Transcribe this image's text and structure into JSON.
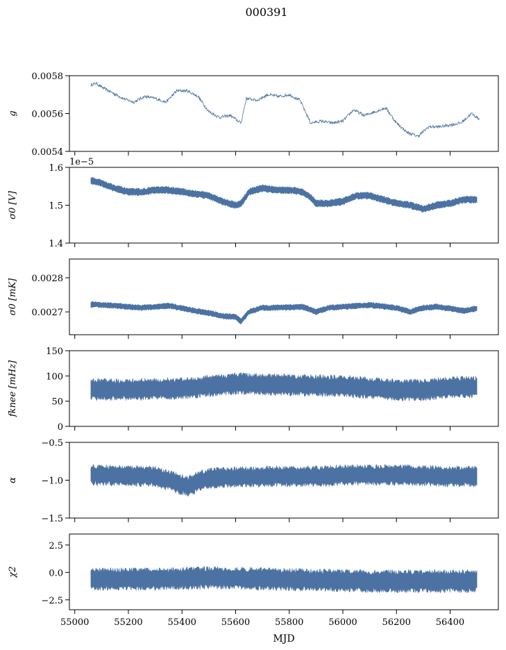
{
  "figure": {
    "title": "000391",
    "xlabel": "MJD"
  },
  "colors": {
    "series": "#4c72a3",
    "axes": "#000000",
    "background": "#ffffff"
  },
  "chart_data": [
    {
      "id": "gain",
      "type": "line",
      "ylabel": "g",
      "xlim": [
        54980,
        56580
      ],
      "ylim": [
        0.0054,
        0.0058
      ],
      "yticks": [
        0.0054,
        0.0056,
        0.0058
      ],
      "yticklabels": [
        "0.0054",
        "0.0056",
        "0.0058"
      ],
      "series": [
        {
          "name": "g",
          "fill": false,
          "noise": 8e-06,
          "x": [
            55060,
            55080,
            55100,
            55140,
            55180,
            55220,
            55260,
            55300,
            55340,
            55380,
            55420,
            55460,
            55500,
            55540,
            55580,
            55620,
            55640,
            55680,
            55720,
            55760,
            55800,
            55840,
            55880,
            55920,
            55960,
            56000,
            56040,
            56080,
            56120,
            56160,
            56200,
            56240,
            56280,
            56320,
            56360,
            56400,
            56440,
            56480,
            56510
          ],
          "y": [
            0.00575,
            0.00576,
            0.00574,
            0.00571,
            0.00568,
            0.00566,
            0.00569,
            0.00568,
            0.00566,
            0.00572,
            0.00572,
            0.00569,
            0.00561,
            0.00558,
            0.00559,
            0.00555,
            0.00568,
            0.00567,
            0.0057,
            0.00569,
            0.0057,
            0.00567,
            0.00555,
            0.00556,
            0.00555,
            0.00556,
            0.00562,
            0.00559,
            0.00561,
            0.00563,
            0.00555,
            0.0055,
            0.00548,
            0.00553,
            0.00553,
            0.00554,
            0.00555,
            0.0056,
            0.00557
          ]
        }
      ]
    },
    {
      "id": "sigma0_v",
      "type": "line",
      "ylabel": "σ0 [V]",
      "offset_text": "1e−5",
      "xlim": [
        54980,
        56580
      ],
      "ylim": [
        1.4,
        1.6
      ],
      "yticks": [
        1.4,
        1.5,
        1.6
      ],
      "yticklabels": [
        "1.4",
        "1.5",
        "1.6"
      ],
      "series": [
        {
          "name": "σ0 [V]",
          "fill": true,
          "noise": 0.01,
          "x": [
            55060,
            55100,
            55150,
            55200,
            55250,
            55300,
            55350,
            55400,
            55450,
            55500,
            55550,
            55600,
            55620,
            55650,
            55700,
            55750,
            55800,
            55850,
            55880,
            55900,
            55950,
            56000,
            56050,
            56100,
            56150,
            56200,
            56250,
            56300,
            56350,
            56400,
            56450,
            56500
          ],
          "y": [
            1.565,
            1.558,
            1.545,
            1.535,
            1.535,
            1.54,
            1.54,
            1.535,
            1.53,
            1.525,
            1.51,
            1.5,
            1.505,
            1.535,
            1.545,
            1.54,
            1.54,
            1.535,
            1.52,
            1.505,
            1.505,
            1.51,
            1.525,
            1.525,
            1.515,
            1.505,
            1.5,
            1.49,
            1.5,
            1.505,
            1.515,
            1.515
          ]
        }
      ]
    },
    {
      "id": "sigma0_mk",
      "type": "line",
      "ylabel": "σ0 [mK]",
      "xlim": [
        54980,
        56580
      ],
      "ylim": [
        0.002633,
        0.002855
      ],
      "yticks": [
        0.0027,
        0.0028
      ],
      "yticklabels": [
        "0.0027",
        "0.0028"
      ],
      "series": [
        {
          "name": "σ0 [mK]",
          "fill": true,
          "noise": 9e-06,
          "x": [
            55060,
            55150,
            55250,
            55350,
            55450,
            55500,
            55550,
            55600,
            55620,
            55650,
            55700,
            55800,
            55850,
            55900,
            55950,
            56000,
            56100,
            56200,
            56250,
            56300,
            56350,
            56400,
            56450,
            56500
          ],
          "y": [
            0.002722,
            0.002718,
            0.002712,
            0.002718,
            0.002703,
            0.002697,
            0.002688,
            0.002685,
            0.002672,
            0.0027,
            0.002712,
            0.002713,
            0.002715,
            0.0027,
            0.002712,
            0.002715,
            0.00272,
            0.002712,
            0.0027,
            0.002712,
            0.002715,
            0.00271,
            0.002703,
            0.00271
          ]
        }
      ]
    },
    {
      "id": "fknee",
      "type": "line",
      "ylabel": "fknee [mHz]",
      "xlim": [
        54980,
        56580
      ],
      "ylim": [
        0,
        150
      ],
      "yticks": [
        0,
        50,
        100,
        150
      ],
      "yticklabels": [
        "0",
        "50",
        "100",
        "150"
      ],
      "series": [
        {
          "name": "fknee",
          "fill": true,
          "noise": 22,
          "x": [
            55060,
            55200,
            55400,
            55600,
            55800,
            56000,
            56200,
            56300,
            56400,
            56500
          ],
          "y": [
            73,
            73,
            75,
            85,
            82,
            80,
            72,
            72,
            78,
            78
          ]
        }
      ]
    },
    {
      "id": "alpha",
      "type": "line",
      "ylabel": "α",
      "xlim": [
        54980,
        56580
      ],
      "ylim": [
        -1.5,
        -0.5
      ],
      "yticks": [
        -1.5,
        -1.0,
        -0.5
      ],
      "yticklabels": [
        "−1.5",
        "−1.0",
        "−0.5"
      ],
      "series": [
        {
          "name": "α",
          "fill": true,
          "noise": 0.14,
          "x": [
            55060,
            55300,
            55420,
            55500,
            55700,
            55900,
            56000,
            56200,
            56400,
            56500
          ],
          "y": [
            -0.93,
            -0.95,
            -1.08,
            -0.97,
            -0.95,
            -0.95,
            -0.93,
            -0.93,
            -0.95,
            -0.95
          ]
        }
      ]
    },
    {
      "id": "chi2",
      "type": "line",
      "ylabel": "χ2",
      "xlim": [
        54980,
        56580
      ],
      "ylim": [
        -3.4,
        3.5
      ],
      "yticks": [
        -2.5,
        0.0,
        2.5
      ],
      "yticklabels": [
        "−2.5",
        "0.0",
        "2.5"
      ],
      "series": [
        {
          "name": "χ2",
          "fill": true,
          "noise": 1.05,
          "x": [
            55060,
            55300,
            55500,
            55700,
            55900,
            56100,
            56300,
            56500
          ],
          "y": [
            -0.6,
            -0.6,
            -0.5,
            -0.6,
            -0.7,
            -0.8,
            -0.8,
            -0.8
          ]
        }
      ]
    }
  ],
  "xaxis": {
    "ticks": [
      55000,
      55200,
      55400,
      55600,
      55800,
      56000,
      56200,
      56400
    ],
    "ticklabels": [
      "55000",
      "55200",
      "55400",
      "55600",
      "55800",
      "56000",
      "56200",
      "56400"
    ]
  }
}
